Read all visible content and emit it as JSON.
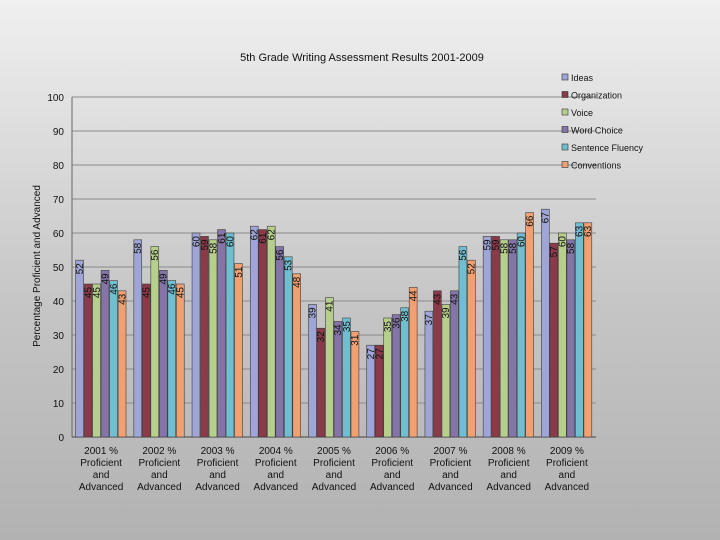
{
  "chart_data": {
    "type": "bar",
    "title": "5th Grade Writing Assessment Results 2001-2009",
    "ylabel": "Percentage Proficient and Advanced",
    "xlabel": "",
    "ylim": [
      0,
      100
    ],
    "yticks": [
      0,
      10,
      20,
      30,
      40,
      50,
      60,
      70,
      80,
      90,
      100
    ],
    "grid": true,
    "legend_position": "top-right",
    "categories": [
      "2001 % Proficient and Advanced",
      "2002 % Proficient and Advanced",
      "2003 % Proficient and Advanced",
      "2004 % Proficient and Advanced",
      "2005 % Proficient and Advanced",
      "2006 % Proficient and Advanced",
      "2007 % Proficient and Advanced",
      "2008 % Proficient and Advanced",
      "2009 % Proficient and Advanced"
    ],
    "category_lines": [
      [
        "2001 %",
        "Proficient",
        "and",
        "Advanced"
      ],
      [
        "2002 %",
        "Proficient",
        "and",
        "Advanced"
      ],
      [
        "2003 %",
        "Proficient",
        "and",
        "Advanced"
      ],
      [
        "2004 %",
        "Proficient",
        "and",
        "Advanced"
      ],
      [
        "2005 %",
        "Proficient",
        "and",
        "Advanced"
      ],
      [
        "2006 %",
        "Proficient",
        "and",
        "Advanced"
      ],
      [
        "2007 %",
        "Proficient",
        "and",
        "Advanced"
      ],
      [
        "2008 %",
        "Proficient",
        "and",
        "Advanced"
      ],
      [
        "2009 %",
        "Proficient",
        "and",
        "Advanced"
      ]
    ],
    "series": [
      {
        "name": "Ideas",
        "color": "#9fa5d6",
        "values": [
          52,
          58,
          60,
          62,
          39,
          27,
          37,
          59,
          67
        ]
      },
      {
        "name": "Organization",
        "color": "#8b3a4a",
        "values": [
          45,
          45,
          59,
          61,
          32,
          27,
          43,
          59,
          57
        ]
      },
      {
        "name": "Voice",
        "color": "#b7cf8c",
        "values": [
          45,
          56,
          58,
          62,
          41,
          35,
          39,
          58,
          60
        ]
      },
      {
        "name": "Word Choice",
        "color": "#8474a8",
        "values": [
          49,
          49,
          61,
          56,
          34,
          36,
          43,
          58,
          58
        ]
      },
      {
        "name": "Sentence Fluency",
        "color": "#6fbfd0",
        "values": [
          46,
          46,
          60,
          53,
          35,
          38,
          56,
          60,
          63
        ]
      },
      {
        "name": "Conventions",
        "color": "#f0a071",
        "values": [
          43,
          45,
          51,
          48,
          31,
          44,
          52,
          66,
          63
        ]
      }
    ]
  }
}
